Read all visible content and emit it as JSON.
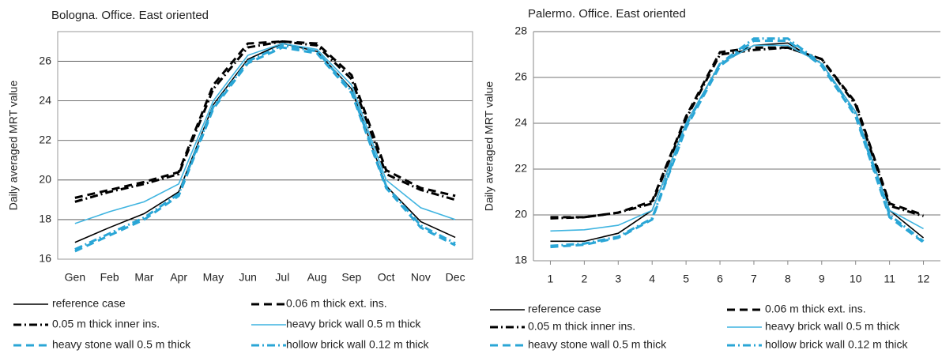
{
  "chart_data": [
    {
      "type": "line",
      "title": "Bologna. Office. East oriented",
      "y_label": "Daily averaged MRT value",
      "categories": [
        "Gen",
        "Feb",
        "Mar",
        "Apr",
        "May",
        "Jun",
        "Jul",
        "Aug",
        "Sep",
        "Oct",
        "Nov",
        "Dec"
      ],
      "ylim": [
        16,
        27.5
      ],
      "yticks": [
        16,
        18,
        20,
        22,
        24,
        26
      ],
      "grid": true,
      "series": [
        {
          "name": "reference case",
          "color": "#000000",
          "dash": "solid",
          "values": [
            16.85,
            17.6,
            18.3,
            19.4,
            23.8,
            26.1,
            26.9,
            26.5,
            24.6,
            19.7,
            17.9,
            17.1
          ]
        },
        {
          "name": "0.06 m thick ext. ins.",
          "color": "#000000",
          "dash": "dashed",
          "values": [
            19.1,
            19.5,
            19.9,
            20.4,
            24.8,
            26.9,
            27.0,
            26.9,
            25.3,
            20.5,
            19.6,
            19.2
          ]
        },
        {
          "name": "0.05 m thick inner ins.",
          "color": "#000000",
          "dash": "dashdot",
          "values": [
            18.9,
            19.4,
            19.8,
            20.3,
            24.6,
            26.7,
            27.0,
            26.8,
            25.1,
            20.3,
            19.5,
            19.0
          ]
        },
        {
          "name": "heavy brick wall 0.5 m thick",
          "color": "#3fb4e0",
          "dash": "solid",
          "values": [
            17.8,
            18.4,
            18.9,
            19.8,
            24.0,
            26.3,
            26.9,
            26.6,
            24.8,
            20.0,
            18.6,
            18.0
          ]
        },
        {
          "name": "heavy stone wall 0.5 m thick",
          "color": "#2aa6d6",
          "dash": "dashed",
          "values": [
            16.4,
            17.2,
            18.0,
            19.2,
            23.6,
            25.9,
            26.7,
            26.4,
            24.4,
            19.6,
            17.6,
            16.7
          ]
        },
        {
          "name": "hollow brick wall 0.12 m thick",
          "color": "#2aa6d6",
          "dash": "dashdot",
          "values": [
            16.5,
            17.3,
            18.1,
            19.3,
            23.7,
            26.0,
            26.8,
            26.5,
            24.5,
            19.7,
            17.7,
            16.8
          ]
        }
      ]
    },
    {
      "type": "line",
      "title": "Palermo. Office. East oriented",
      "y_label": "Daily averaged MRT value",
      "x": [
        1,
        2,
        3,
        4,
        5,
        6,
        7,
        8,
        9,
        10,
        11,
        12
      ],
      "xlim": [
        0.5,
        12.5
      ],
      "xticks": [
        1,
        2,
        3,
        4,
        5,
        6,
        7,
        8,
        9,
        10,
        11,
        12
      ],
      "ylim": [
        18,
        28
      ],
      "yticks": [
        18,
        20,
        22,
        24,
        26,
        28
      ],
      "grid": true,
      "series": [
        {
          "name": "reference case",
          "color": "#000000",
          "dash": "solid",
          "values": [
            18.85,
            18.85,
            19.2,
            20.2,
            24.0,
            26.6,
            27.4,
            27.5,
            26.6,
            24.5,
            20.2,
            19.0
          ]
        },
        {
          "name": "0.06 m thick ext. ins.",
          "color": "#000000",
          "dash": "dashed",
          "values": [
            19.9,
            19.9,
            20.1,
            20.6,
            24.3,
            27.1,
            27.3,
            27.3,
            26.8,
            24.9,
            20.5,
            20.0
          ]
        },
        {
          "name": "0.05 m thick inner ins.",
          "color": "#000000",
          "dash": "dashdot",
          "values": [
            19.85,
            19.9,
            20.1,
            20.5,
            24.2,
            27.0,
            27.2,
            27.3,
            26.8,
            24.8,
            20.4,
            19.95
          ]
        },
        {
          "name": "heavy brick wall 0.5 m thick",
          "color": "#3fb4e0",
          "dash": "solid",
          "values": [
            19.3,
            19.35,
            19.55,
            20.2,
            24.0,
            26.6,
            27.4,
            27.4,
            26.6,
            24.5,
            20.2,
            19.4
          ]
        },
        {
          "name": "heavy stone wall 0.5 m thick",
          "color": "#2aa6d6",
          "dash": "dashed",
          "values": [
            18.6,
            18.7,
            19.0,
            19.8,
            23.8,
            26.5,
            27.6,
            27.6,
            26.5,
            24.3,
            19.9,
            18.8
          ]
        },
        {
          "name": "hollow brick wall 0.12 m thick",
          "color": "#2aa6d6",
          "dash": "dashdot",
          "values": [
            18.65,
            18.75,
            19.05,
            19.85,
            23.9,
            26.6,
            27.7,
            27.7,
            26.6,
            24.4,
            20.0,
            18.85
          ]
        }
      ]
    }
  ]
}
